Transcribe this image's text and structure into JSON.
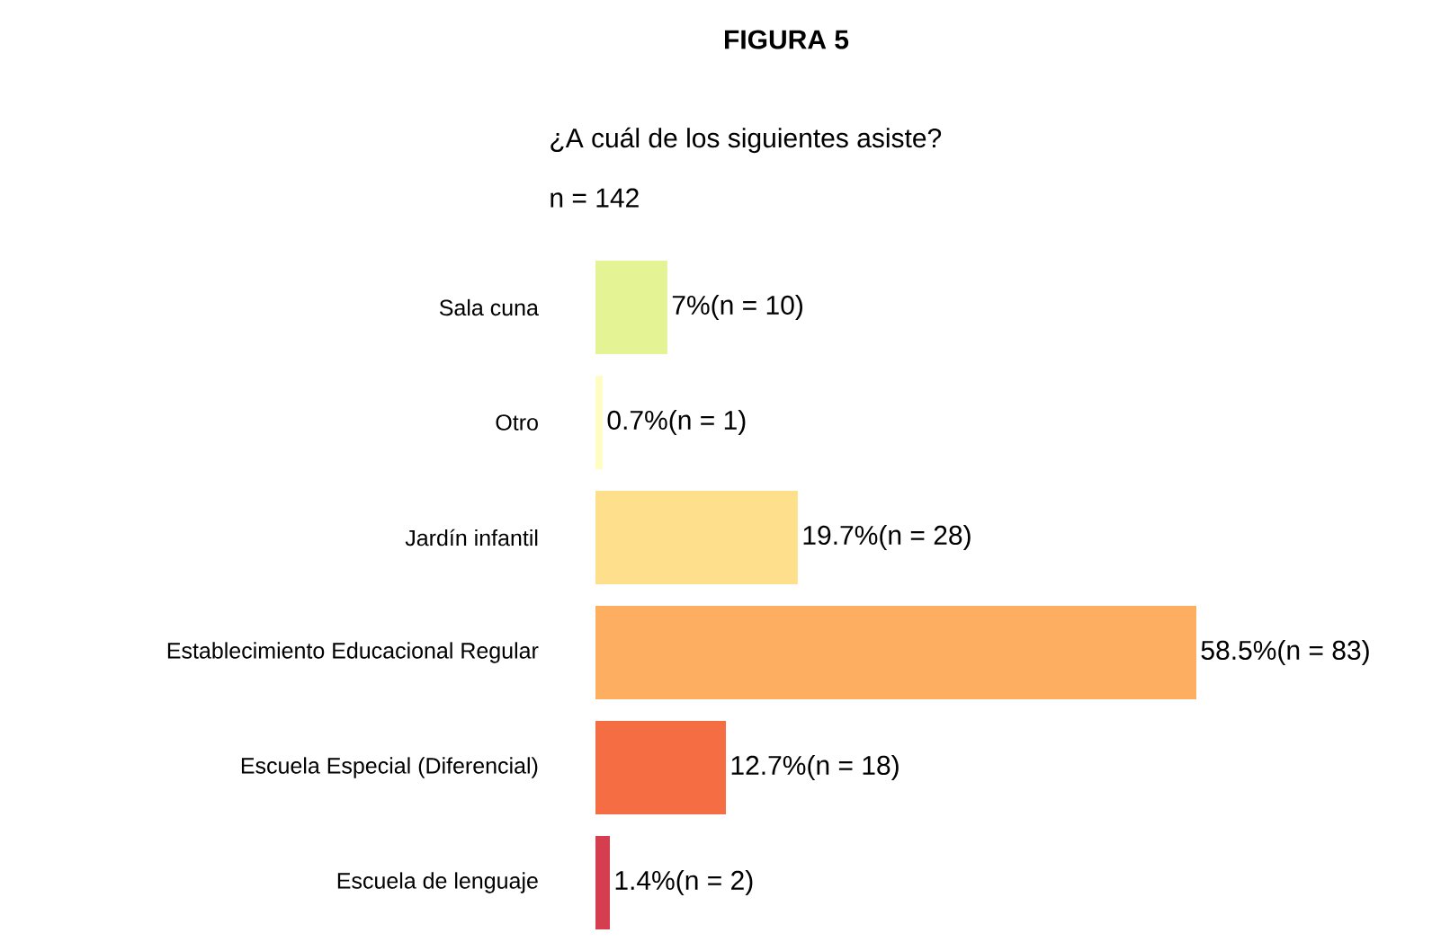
{
  "chart_data": {
    "type": "bar",
    "orientation": "horizontal",
    "title": "FIGURA 5",
    "subtitle": "¿A cuál de los siguientes asiste?",
    "annotations": [
      "n = 142"
    ],
    "categories": [
      "Sala cuna",
      "Otro",
      "Jardín infantil",
      "Establecimiento Educacional Regular",
      "Escuela Especial (Diferencial)",
      "Escuela de lenguaje"
    ],
    "values": [
      7,
      0.7,
      19.7,
      58.5,
      12.7,
      1.4
    ],
    "value_labels": [
      "7%(n = 10)",
      "0.7%(n = 1)",
      "19.7%(n = 28)",
      "58.5%(n = 83)",
      "12.7%(n = 18)",
      "1.4%(n = 2)"
    ],
    "colors": [
      "#e4f495",
      "#fffcc4",
      "#fedf8b",
      "#fdae61",
      "#f46d43",
      "#d53e4f"
    ]
  }
}
